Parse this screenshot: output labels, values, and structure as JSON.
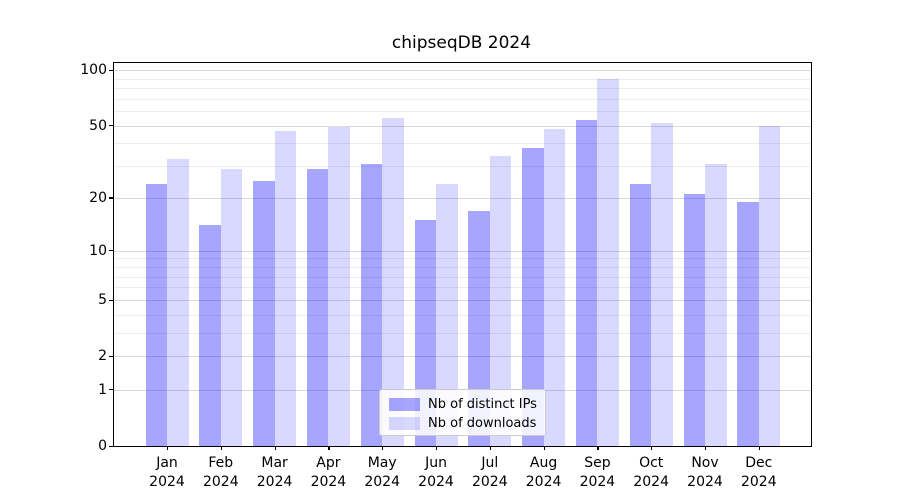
{
  "figure": {
    "title": "chipseqDB 2024"
  },
  "legend": {
    "position": "lower center"
  },
  "chart_data": {
    "type": "bar",
    "title": "chipseqDB 2024",
    "xlabel": "",
    "ylabel": "",
    "categories": [
      "Jan",
      "Feb",
      "Mar",
      "Apr",
      "May",
      "Jun",
      "Jul",
      "Aug",
      "Sep",
      "Oct",
      "Nov",
      "Dec"
    ],
    "category_year_line": "2024",
    "series": [
      {
        "name": "Nb of distinct IPs",
        "color": "rgba(0,0,255,0.35)",
        "color_hex_on_white": "#A6A6FF",
        "values": [
          24,
          14,
          25,
          29,
          31,
          15,
          17,
          38,
          54,
          24,
          21,
          19
        ]
      },
      {
        "name": "Nb of downloads",
        "color": "rgba(0,0,255,0.15)",
        "color_hex_on_white": "#D9D9FF",
        "values": [
          33,
          29,
          47,
          49,
          55,
          24,
          34,
          48,
          89,
          52,
          31,
          50
        ]
      }
    ],
    "y_scale": "log1p: y position proportional to log10(value+1)",
    "y_ticks": [
      100,
      50,
      20,
      10,
      5,
      2,
      1,
      0
    ],
    "y_minor_ticks": [
      3,
      4,
      6,
      7,
      8,
      9,
      30,
      40,
      60,
      70,
      80,
      90
    ],
    "ylim": [
      0,
      110
    ],
    "grid": true,
    "legend_position": "lower center"
  }
}
